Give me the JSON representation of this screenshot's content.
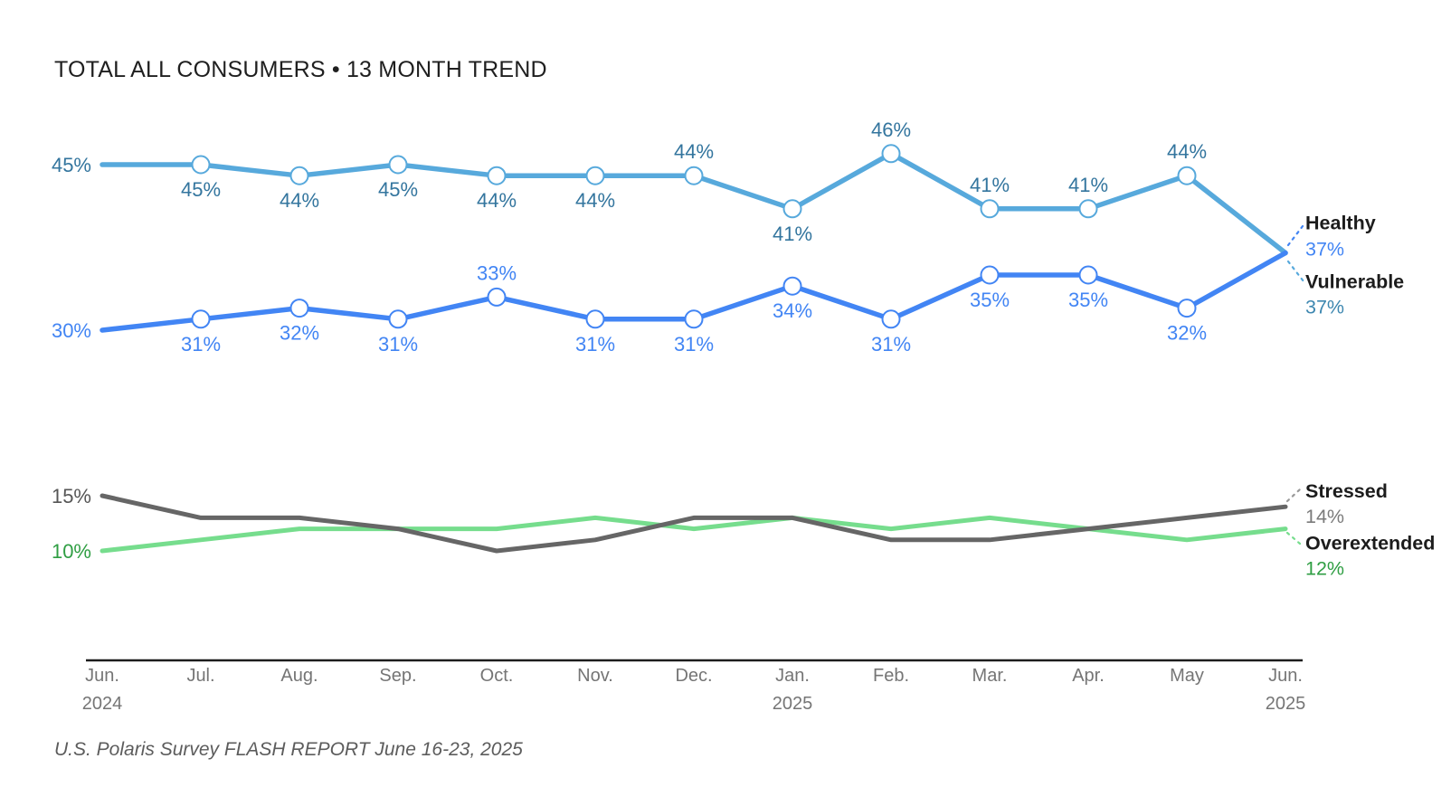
{
  "title": "TOTAL ALL CONSUMERS • 13 MONTH TREND",
  "source_note": "U.S. Polaris Survey FLASH REPORT June 16-23, 2025",
  "colors": {
    "title_text": "#1f1f1f",
    "footer_text": "#5c5c5c",
    "axis_line": "#1c1c1c",
    "axis_label": "#757575",
    "legend_name_text": "#1c1c1c"
  },
  "chart_data": {
    "type": "line",
    "title": "TOTAL ALL CONSUMERS • 13 MONTH TREND",
    "unit": "%",
    "grid": false,
    "legend_position": "right-end-labels",
    "y_range_hint": [
      0,
      50
    ],
    "x_axis": {
      "months": [
        {
          "label": "Jun.",
          "year": "2024"
        },
        {
          "label": "Jul."
        },
        {
          "label": "Aug."
        },
        {
          "label": "Sep."
        },
        {
          "label": "Oct."
        },
        {
          "label": "Nov."
        },
        {
          "label": "Dec."
        },
        {
          "label": "Jan.",
          "year": "2025"
        },
        {
          "label": "Feb."
        },
        {
          "label": "Mar."
        },
        {
          "label": "Apr."
        },
        {
          "label": "May"
        },
        {
          "label": "Jun.",
          "year": "2025"
        }
      ]
    },
    "series": [
      {
        "name": "Healthy",
        "color": "#57A9DC",
        "label_color": "#33759E",
        "leader_color": "#4285F4",
        "markers": true,
        "values": [
          45,
          45,
          44,
          45,
          44,
          44,
          44,
          41,
          46,
          41,
          41,
          44,
          37
        ],
        "point_labels": [
          "45%",
          "45%",
          "44%",
          "45%",
          "44%",
          "44%",
          "44%",
          "41%",
          "46%",
          "41%",
          "41%",
          "44%",
          null
        ],
        "label_positions": [
          "left",
          "below",
          "below",
          "below",
          "below",
          "below",
          "above",
          "below",
          "above",
          "above",
          "above",
          "above",
          null
        ],
        "end_label": {
          "name": "Healthy",
          "value": "37%",
          "value_color": "#4285F4"
        }
      },
      {
        "name": "Vulnerable",
        "color": "#4285F4",
        "label_color": "#4285F4",
        "leader_color": "#57A9DC",
        "markers": true,
        "values": [
          30,
          31,
          32,
          31,
          33,
          31,
          31,
          34,
          31,
          35,
          35,
          32,
          37
        ],
        "point_labels": [
          "30%",
          "31%",
          "32%",
          "31%",
          "33%",
          "31%",
          "31%",
          "34%",
          "31%",
          "35%",
          "35%",
          "32%",
          null
        ],
        "label_positions": [
          "left",
          "below",
          "below",
          "below",
          "above",
          "below",
          "below",
          "below",
          "below",
          "below",
          "below",
          "below",
          null
        ],
        "end_label": {
          "name": "Vulnerable",
          "value": "37%",
          "value_color": "#3D87B0"
        }
      },
      {
        "name": "Stressed",
        "color": "#666666",
        "label_color": "#565656",
        "leader_color": "#999999",
        "markers": false,
        "values_estimated": true,
        "values": [
          15,
          13,
          13,
          12,
          10,
          11,
          13,
          13,
          11,
          11,
          12,
          13,
          14
        ],
        "point_labels": [
          "15%",
          null,
          null,
          null,
          null,
          null,
          null,
          null,
          null,
          null,
          null,
          null,
          null
        ],
        "label_positions": [
          "left",
          null,
          null,
          null,
          null,
          null,
          null,
          null,
          null,
          null,
          null,
          null,
          null
        ],
        "end_label": {
          "name": "Stressed",
          "value": "14%",
          "value_color": "#7B7B7B"
        }
      },
      {
        "name": "Overextended",
        "color": "#76DD8D",
        "label_color": "#2F9E43",
        "leader_color": "#76DD8D",
        "markers": false,
        "values_estimated": true,
        "values": [
          10,
          11,
          12,
          12,
          12,
          13,
          12,
          13,
          12,
          13,
          12,
          11,
          12
        ],
        "point_labels": [
          "10%",
          null,
          null,
          null,
          null,
          null,
          null,
          null,
          null,
          null,
          null,
          null,
          null
        ],
        "label_positions": [
          "left",
          null,
          null,
          null,
          null,
          null,
          null,
          null,
          null,
          null,
          null,
          null,
          null
        ],
        "end_label": {
          "name": "Overextended",
          "value": "12%",
          "value_color": "#2F9E43"
        }
      }
    ]
  }
}
